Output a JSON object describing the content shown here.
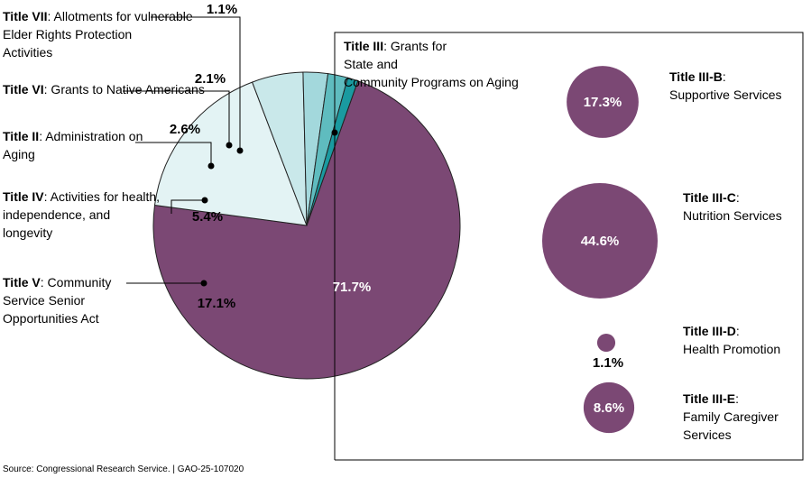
{
  "chart_data": {
    "type": "pie",
    "slices": [
      {
        "key": "t3",
        "title": "Title III",
        "desc": "Grants for State and Community Programs on Aging",
        "value": 71.7,
        "label": "71.7%",
        "color": "#7b4874"
      },
      {
        "key": "t5",
        "title": "Title V",
        "desc": "Community Service Senior Opportunities Act",
        "value": 17.1,
        "label": "17.1%",
        "color": "#e3f3f4"
      },
      {
        "key": "t4",
        "title": "Title IV",
        "desc": "Activities for health, independence, and longevity",
        "value": 5.4,
        "label": "5.4%",
        "color": "#c9e8ea"
      },
      {
        "key": "t2",
        "title": "Title II",
        "desc": "Administration on Aging",
        "value": 2.6,
        "label": "2.6%",
        "color": "#a3d8dc"
      },
      {
        "key": "t6",
        "title": "Title VI",
        "desc": "Grants to Native Americans",
        "value": 2.1,
        "label": "2.1%",
        "color": "#5fbcbf"
      },
      {
        "key": "t7",
        "title": "Title VII",
        "desc": "Allotments for vulnerable Elder Rights Protection Activities",
        "value": 1.1,
        "label": "1.1%",
        "color": "#1a9aa0"
      }
    ],
    "title_iii_breakdown": [
      {
        "key": "b",
        "title": "Title III-B",
        "desc": "Supportive Services",
        "value": 17.3,
        "label": "17.3%",
        "color": "#7b4874"
      },
      {
        "key": "c",
        "title": "Title III-C",
        "desc": "Nutrition Services",
        "value": 44.6,
        "label": "44.6%",
        "color": "#7b4874"
      },
      {
        "key": "d",
        "title": "Title III-D",
        "desc": "Health Promotion",
        "value": 1.1,
        "label": "1.1%",
        "color": "#7b4874"
      },
      {
        "key": "e",
        "title": "Title III-E",
        "desc": "Family Caregiver Services",
        "value": 8.6,
        "label": "8.6%",
        "color": "#7b4874"
      }
    ]
  },
  "source": "Source: Congressional Research Service.  |  GAO-25-107020"
}
